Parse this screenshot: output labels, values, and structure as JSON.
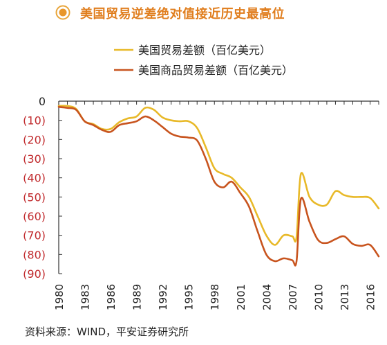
{
  "chart_data": {
    "type": "line",
    "title": "美国贸易逆差绝对值接近历史最高位",
    "source": "资料来源：WIND，平安证券研究所",
    "xlabel": "",
    "ylabel": "",
    "ylim": [
      -90,
      0
    ],
    "xlim": [
      1980,
      2017
    ],
    "y_ticks": [
      0,
      -10,
      -20,
      -30,
      -40,
      -50,
      -60,
      -70,
      -80,
      -90
    ],
    "y_tick_labels": [
      "0",
      "(10)",
      "(20)",
      "(30)",
      "(40)",
      "(50)",
      "(60)",
      "(70)",
      "(80)",
      "(90)"
    ],
    "x_ticks": [
      1980,
      1983,
      1986,
      1989,
      1992,
      1995,
      1998,
      2001,
      2004,
      2007,
      2010,
      2013,
      2016
    ],
    "x_tick_labels": [
      "1980",
      "1983",
      "1986",
      "1989",
      "1992",
      "1995",
      "1998",
      "2001",
      "2004",
      "2007",
      "2010",
      "2013",
      "2016"
    ],
    "legend_position": "top-center",
    "grid": false,
    "series": [
      {
        "name": "美国贸易差额（百亿美元）",
        "color": "#E8B929",
        "x": [
          1980,
          1981,
          1982,
          1983,
          1984,
          1985,
          1986,
          1987,
          1988,
          1989,
          1990,
          1991,
          1992,
          1993,
          1994,
          1995,
          1996,
          1997,
          1998,
          1999,
          2000,
          2001,
          2002,
          2003,
          2004,
          2005,
          2006,
          2007,
          2007.5,
          2008,
          2009,
          2010,
          2011,
          2012,
          2013,
          2014,
          2015,
          2016,
          2017
        ],
        "values": [
          -2.5,
          -2.5,
          -4,
          -10.5,
          -12,
          -14.5,
          -14.5,
          -11,
          -9,
          -8,
          -3.5,
          -4.5,
          -8.5,
          -10,
          -10.5,
          -10.5,
          -14,
          -24,
          -35,
          -38,
          -40,
          -45,
          -50,
          -60,
          -70,
          -75,
          -70,
          -70.5,
          -71,
          -38,
          -50,
          -54,
          -54,
          -47,
          -49,
          -50,
          -50,
          -50.5,
          -56
        ]
      },
      {
        "name": "美国商品贸易差额（百亿美元）",
        "color": "#C8541E",
        "x": [
          1980,
          1981,
          1982,
          1983,
          1984,
          1985,
          1986,
          1987,
          1988,
          1989,
          1990,
          1991,
          1992,
          1993,
          1994,
          1995,
          1996,
          1997,
          1998,
          1999,
          2000,
          2001,
          2002,
          2003,
          2004,
          2005,
          2006,
          2007,
          2007.5,
          2008,
          2009,
          2010,
          2011,
          2012,
          2013,
          2014,
          2015,
          2016,
          2017
        ],
        "values": [
          -3,
          -3.5,
          -4.5,
          -10.5,
          -12.5,
          -15,
          -16,
          -12.5,
          -11.5,
          -10.5,
          -8,
          -10,
          -13.5,
          -17,
          -18.5,
          -19,
          -20.5,
          -30,
          -42,
          -45,
          -42,
          -48,
          -55,
          -68,
          -80,
          -83.5,
          -82,
          -83,
          -83.5,
          -51,
          -63,
          -72.5,
          -74,
          -72,
          -70.5,
          -74.5,
          -75.5,
          -75,
          -81
        ]
      }
    ]
  }
}
